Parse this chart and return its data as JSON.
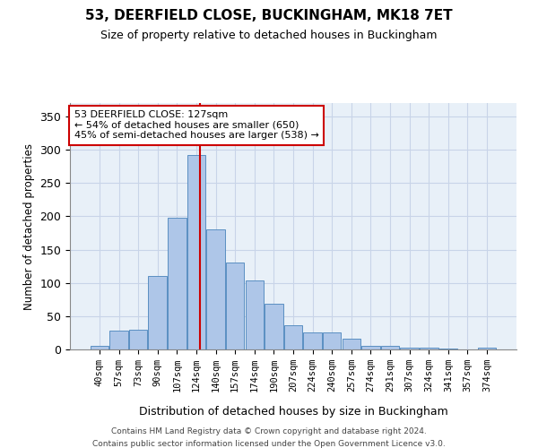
{
  "title1": "53, DEERFIELD CLOSE, BUCKINGHAM, MK18 7ET",
  "title2": "Size of property relative to detached houses in Buckingham",
  "xlabel": "Distribution of detached houses by size in Buckingham",
  "ylabel": "Number of detached properties",
  "categories": [
    "40sqm",
    "57sqm",
    "73sqm",
    "90sqm",
    "107sqm",
    "124sqm",
    "140sqm",
    "157sqm",
    "174sqm",
    "190sqm",
    "207sqm",
    "224sqm",
    "240sqm",
    "257sqm",
    "274sqm",
    "291sqm",
    "307sqm",
    "324sqm",
    "341sqm",
    "357sqm",
    "374sqm"
  ],
  "values": [
    5,
    28,
    29,
    110,
    198,
    292,
    180,
    130,
    103,
    68,
    36,
    26,
    26,
    16,
    6,
    5,
    3,
    3,
    1,
    0,
    3
  ],
  "bar_color": "#aec6e8",
  "bar_edge_color": "#5a8fc2",
  "subject_line_color": "#cc0000",
  "annotation_text": "53 DEERFIELD CLOSE: 127sqm\n← 54% of detached houses are smaller (650)\n45% of semi-detached houses are larger (538) →",
  "annotation_box_color": "#ffffff",
  "annotation_box_edge": "#cc0000",
  "ylim": [
    0,
    370
  ],
  "yticks": [
    0,
    50,
    100,
    150,
    200,
    250,
    300,
    350
  ],
  "grid_color": "#c8d4e8",
  "bg_color": "#e8f0f8",
  "footer1": "Contains HM Land Registry data © Crown copyright and database right 2024.",
  "footer2": "Contains public sector information licensed under the Open Government Licence v3.0."
}
